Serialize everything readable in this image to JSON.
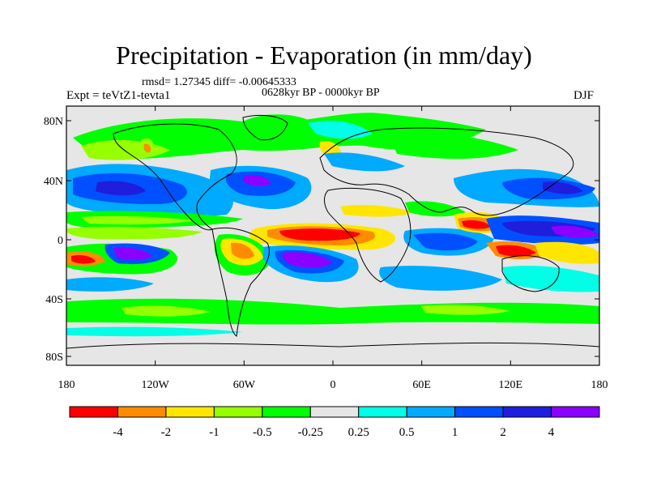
{
  "title": "Precipitation - Evaporation (in mm/day)",
  "stats": "rmsd= 1.27345 diff= -0.00645333",
  "period": "0628kyr BP - 0000kyr BP",
  "experiment": "Expt = teVtZ1-tevta1",
  "season": "DJF",
  "lat_labels": [
    "80N",
    "40N",
    "0",
    "40S",
    "80S"
  ],
  "lon_labels": [
    "180",
    "120W",
    "60W",
    "0",
    "60E",
    "120E",
    "180"
  ],
  "colorbar": {
    "colors": [
      "#ff0000",
      "#ff8c00",
      "#ffe600",
      "#96ff00",
      "#00ff00",
      "#e6e6e6",
      "#00ffe6",
      "#00aaff",
      "#0050ff",
      "#1e1edc",
      "#8c00ff"
    ],
    "labels": [
      "-4",
      "-2",
      "-1",
      "-0.5",
      "-0.25",
      "0.25",
      "0.5",
      "1",
      "2",
      "4"
    ]
  },
  "palette": {
    "strong_neg": "#ff0000",
    "orange": "#ff8c00",
    "yellow": "#ffe600",
    "lime": "#96ff00",
    "green": "#00ff00",
    "neutral": "#e6e6e6",
    "cyan": "#00ffe6",
    "light_blue": "#00aaff",
    "blue": "#0050ff",
    "dark_blue": "#1e1edc",
    "violet": "#8c00ff"
  }
}
